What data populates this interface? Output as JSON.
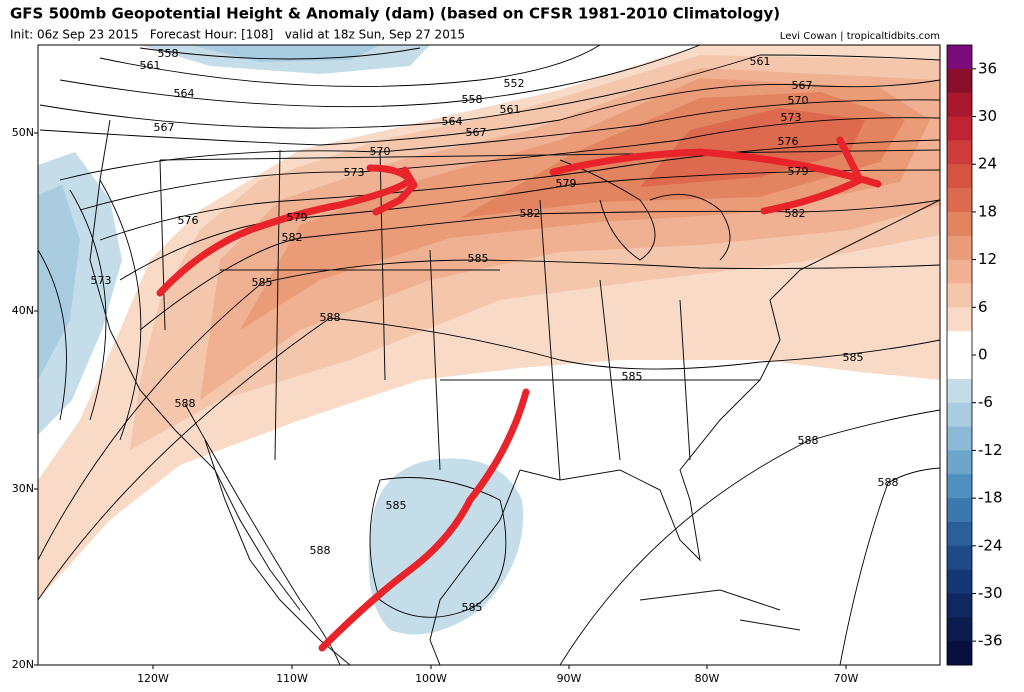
{
  "header": {
    "title": "GFS 500mb Geopotential Height & Anomaly (dam) (based on CFSR 1981-2010 Climatology)",
    "subtitle": "Init: 06z Sep 23 2015   Forecast Hour: [108]   valid at 18z Sun, Sep 27 2015",
    "credit": "Levi Cowan | tropicaltidbits.com"
  },
  "map": {
    "lat_labels": [
      "50N",
      "40N",
      "30N",
      "20N"
    ],
    "lon_labels": [
      "120W",
      "110W",
      "100W",
      "90W",
      "80W",
      "70W"
    ],
    "contour_labels": [
      "558",
      "561",
      "564",
      "567",
      "552",
      "558",
      "561",
      "564",
      "567",
      "561",
      "567",
      "570",
      "573",
      "576",
      "579",
      "582",
      "570",
      "573",
      "576",
      "579",
      "582",
      "573",
      "585",
      "588",
      "585",
      "582",
      "579",
      "585",
      "585",
      "588",
      "588",
      "588",
      "585",
      "588",
      "585"
    ]
  },
  "colorbar": {
    "clim": [
      -39,
      39
    ],
    "ticks": [
      36,
      30,
      24,
      18,
      12,
      6,
      0,
      -6,
      -12,
      -18,
      -24,
      -30,
      -36
    ],
    "colors": [
      "#7b0a7b",
      "#8b0f2a",
      "#a8182e",
      "#c02433",
      "#cd3b3a",
      "#d4543f",
      "#dd6a4f",
      "#e38460",
      "#ea9b78",
      "#efb192",
      "#f4c7ac",
      "#f8dac6",
      "#ffffff",
      "#ffffff",
      "#c5dde9",
      "#a9cce0",
      "#8cbad6",
      "#6ea6cb",
      "#5090be",
      "#3a78ae",
      "#2b5f9c",
      "#1f4a88",
      "#163775",
      "#0f2862",
      "#0a1b4c",
      "#081040"
    ]
  }
}
